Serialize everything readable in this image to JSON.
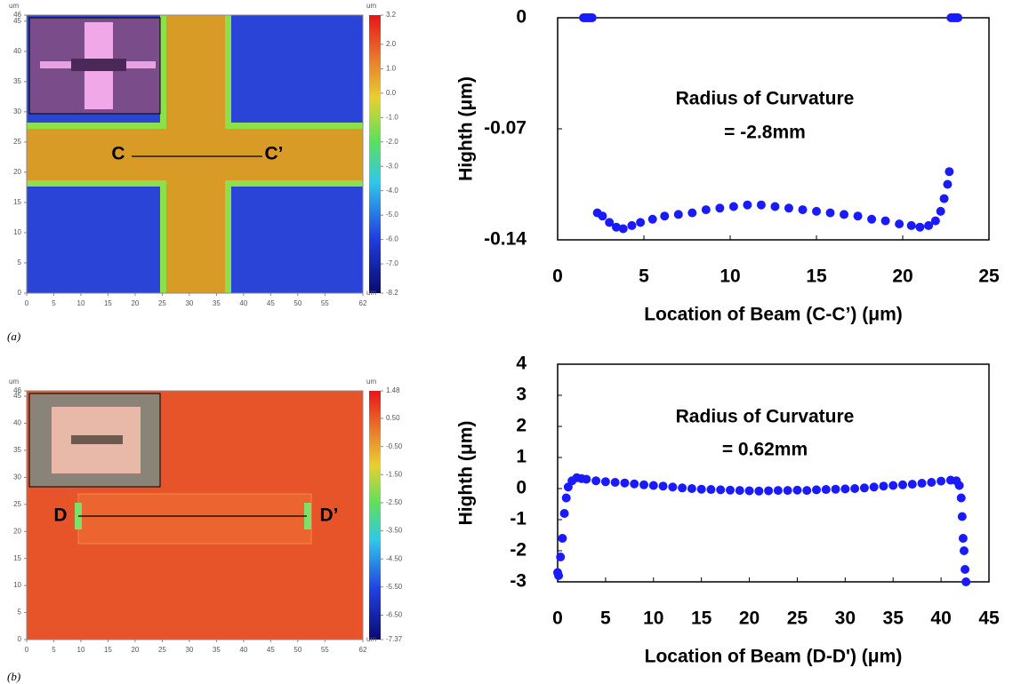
{
  "chart_data": [
    {
      "type": "heatmap",
      "caption": "(a)",
      "unit": "um",
      "xlim": [
        0,
        62
      ],
      "xticks": [
        0,
        5,
        10,
        15,
        20,
        25,
        30,
        35,
        40,
        45,
        50,
        55,
        62
      ],
      "ylim": [
        0,
        46
      ],
      "yticks": [
        0,
        5,
        10,
        15,
        20,
        25,
        30,
        35,
        40,
        45,
        46
      ],
      "clim": [
        -8.2,
        3.2
      ],
      "cticks": [
        3.2,
        {
          "value": 2,
          "label": "2.0"
        },
        {
          "value": 1,
          "label": "1.0"
        },
        {
          "value": 0,
          "label": "0.0"
        },
        {
          "value": -1,
          "label": "-1.0"
        },
        {
          "value": -2,
          "label": "-2.0"
        },
        {
          "value": -3,
          "label": "-3.0"
        },
        {
          "value": -4,
          "label": "-4.0"
        },
        {
          "value": -5,
          "label": "-5.0"
        },
        {
          "value": -6,
          "label": "-6.0"
        },
        {
          "value": -7,
          "label": "-7.0"
        },
        -8.2
      ],
      "annotations": [
        "C",
        "C’"
      ]
    },
    {
      "type": "scatter",
      "color": "#1a1aff",
      "xlabel": "Location of Beam (C-C’) (μm)",
      "ylabel": "Highth (μm)",
      "annotations": [
        "Radius of Curvature",
        "= -2.8mm"
      ],
      "xlim": [
        0,
        25
      ],
      "xticks": [
        0,
        5,
        10,
        15,
        20,
        25
      ],
      "ylim": [
        -0.14,
        0
      ],
      "yticks": [
        -0.14,
        -0.07,
        0
      ],
      "x": [
        1.5,
        1.6,
        1.7,
        1.8,
        1.9,
        2.0,
        22.8,
        22.9,
        23.0,
        23.1,
        23.2,
        2.3,
        2.6,
        3.0,
        3.4,
        3.8,
        4.3,
        4.8,
        5.5,
        6.2,
        7,
        7.8,
        8.6,
        9.4,
        10.2,
        11,
        11.8,
        12.6,
        13.4,
        14.2,
        15,
        15.8,
        16.6,
        17.4,
        18.2,
        19,
        19.8,
        20.5,
        21,
        21.5,
        21.9,
        22.2,
        22.4,
        22.6,
        22.7
      ],
      "values": [
        0,
        0,
        0,
        0,
        0,
        0,
        0,
        0,
        0,
        0,
        0,
        -0.123,
        -0.125,
        -0.129,
        -0.132,
        -0.133,
        -0.131,
        -0.129,
        -0.127,
        -0.125,
        -0.124,
        -0.123,
        -0.121,
        -0.12,
        -0.119,
        -0.118,
        -0.118,
        -0.119,
        -0.12,
        -0.121,
        -0.122,
        -0.123,
        -0.124,
        -0.125,
        -0.127,
        -0.128,
        -0.13,
        -0.131,
        -0.132,
        -0.131,
        -0.128,
        -0.122,
        -0.114,
        -0.105,
        -0.097
      ]
    },
    {
      "type": "heatmap",
      "caption": "(b)",
      "unit": "um",
      "xlim": [
        0,
        62
      ],
      "xticks": [
        0,
        5,
        10,
        15,
        20,
        25,
        30,
        35,
        40,
        45,
        50,
        55,
        62
      ],
      "ylim": [
        0,
        46
      ],
      "yticks": [
        0,
        5,
        10,
        15,
        20,
        25,
        30,
        35,
        40,
        45,
        46
      ],
      "clim": [
        -7.37,
        1.48
      ],
      "cticks": [
        1.48,
        {
          "value": 0.5,
          "label": "0.50"
        },
        {
          "value": -0.5,
          "label": "-0.50"
        },
        {
          "value": -1.5,
          "label": "-1.50"
        },
        {
          "value": -2.5,
          "label": "-2.50"
        },
        {
          "value": -3.5,
          "label": "-3.50"
        },
        {
          "value": -4.5,
          "label": "-4.50"
        },
        {
          "value": -5.5,
          "label": "-5.50"
        },
        {
          "value": -6.5,
          "label": "-6.50"
        },
        -7.37
      ],
      "annotations": [
        "D",
        "D’"
      ]
    },
    {
      "type": "scatter",
      "color": "#1a1aff",
      "xlabel": "Location of Beam (D-D') (μm)",
      "ylabel": "Highth (μm)",
      "annotations": [
        "Radius of Curvature",
        "= 0.62mm"
      ],
      "xlim": [
        0,
        45
      ],
      "xticks": [
        0,
        5,
        10,
        15,
        20,
        25,
        30,
        35,
        40,
        45
      ],
      "ylim": [
        -3,
        4
      ],
      "yticks": [
        -3,
        -2,
        -1,
        0,
        1,
        2,
        3,
        4
      ],
      "x": [
        0,
        0.1,
        0.3,
        0.5,
        0.7,
        0.9,
        1.1,
        1.5,
        2,
        2.5,
        3,
        4,
        5,
        6,
        7,
        8,
        9,
        10,
        11,
        12,
        13,
        14,
        15,
        16,
        17,
        18,
        19,
        20,
        21,
        22,
        23,
        24,
        25,
        26,
        27,
        28,
        29,
        30,
        31,
        32,
        33,
        34,
        35,
        36,
        37,
        38,
        39,
        40,
        41,
        41.6,
        41.9,
        42.1,
        42.2,
        42.3,
        42.4,
        42.5,
        42.6
      ],
      "values": [
        -2.7,
        -2.8,
        -2.2,
        -1.6,
        -0.8,
        -0.3,
        0.05,
        0.25,
        0.35,
        0.32,
        0.3,
        0.25,
        0.22,
        0.2,
        0.18,
        0.15,
        0.12,
        0.1,
        0.08,
        0.05,
        0.02,
        0,
        -0.02,
        -0.03,
        -0.04,
        -0.05,
        -0.06,
        -0.07,
        -0.08,
        -0.07,
        -0.06,
        -0.06,
        -0.05,
        -0.06,
        -0.04,
        -0.03,
        -0.02,
        -0.01,
        0,
        0.02,
        0.05,
        0.08,
        0.1,
        0.12,
        0.14,
        0.17,
        0.2,
        0.24,
        0.27,
        0.25,
        0.1,
        -0.3,
        -0.9,
        -1.6,
        -2.0,
        -2.6,
        -3.0
      ]
    }
  ]
}
